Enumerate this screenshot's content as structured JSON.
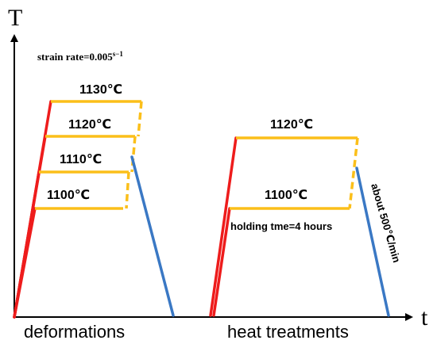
{
  "axes": {
    "y_label": "T",
    "x_label": "t"
  },
  "strain_rate": {
    "text": "strain rate=0.005",
    "unit": "s−1"
  },
  "deformation": {
    "label": "deformations",
    "temps": [
      "1130℃",
      "1120℃",
      "1110℃",
      "1100℃"
    ]
  },
  "heat_treatment": {
    "label": "heat treatments",
    "temps": [
      "1120℃",
      "1100℃"
    ],
    "holding": "holding tme=4 hours",
    "cooling": "about 500℃/min"
  },
  "colors": {
    "heating": "#ee1c1c",
    "plateau": "#fbbf1a",
    "cooling": "#3a78c4",
    "axis": "#000000"
  }
}
